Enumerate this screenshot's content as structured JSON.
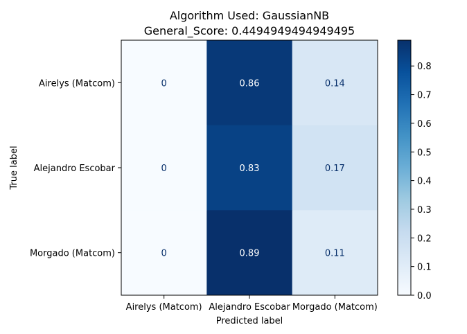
{
  "chart_data": {
    "type": "heatmap",
    "title": "Algorithm Used: GaussianNB",
    "subtitle": "General_Score: 0.4494949494949495",
    "xlabel": "Predicted label",
    "ylabel": "True label",
    "x_categories": [
      "Airelys (Matcom)",
      "Alejandro Escobar",
      "Morgado (Matcom)"
    ],
    "y_categories": [
      "Airelys (Matcom)",
      "Alejandro Escobar",
      "Morgado (Matcom)"
    ],
    "values": [
      [
        0,
        0.86,
        0.14
      ],
      [
        0,
        0.83,
        0.17
      ],
      [
        0,
        0.89,
        0.11
      ]
    ],
    "cell_labels": [
      [
        "0",
        "0.86",
        "0.14"
      ],
      [
        "0",
        "0.83",
        "0.17"
      ],
      [
        "0",
        "0.89",
        "0.11"
      ]
    ],
    "colormap": "Blues",
    "colorbar": {
      "range": [
        0.0,
        0.89
      ],
      "ticks": [
        0.0,
        0.1,
        0.2,
        0.3,
        0.4,
        0.5,
        0.6,
        0.7,
        0.8
      ],
      "tick_labels": [
        "0.0",
        "0.1",
        "0.2",
        "0.3",
        "0.4",
        "0.5",
        "0.6",
        "0.7",
        "0.8"
      ]
    },
    "text_color_dark": "#08306b",
    "text_color_light": "#ffffff"
  }
}
